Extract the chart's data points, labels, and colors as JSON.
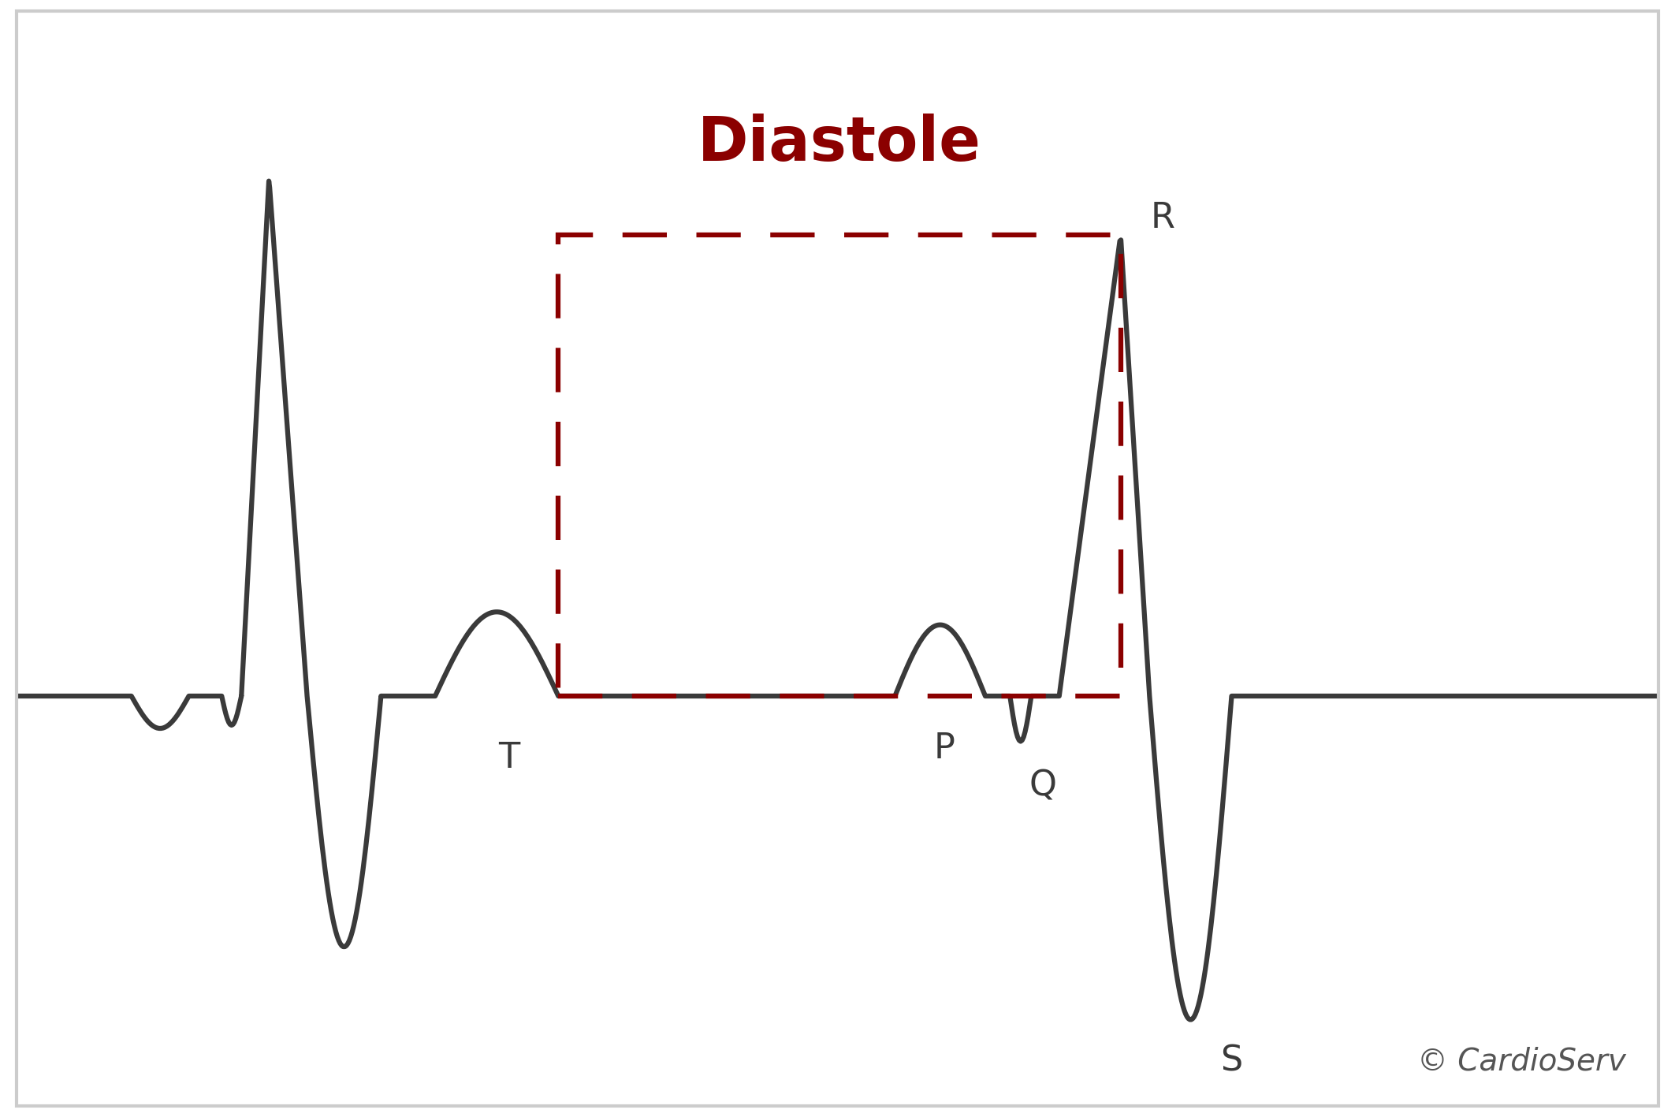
{
  "title": "Diastole",
  "title_color": "#8B0000",
  "ecg_color": "#3a3a3a",
  "dashed_rect_color": "#8B0000",
  "background_color": "#ffffff",
  "border_color": "#cccccc",
  "copyright_text": "© CardioServ",
  "copyright_color": "#555555",
  "figsize": [
    21.25,
    14.17
  ],
  "dpi": 100,
  "xlim": [
    0,
    10
  ],
  "ylim": [
    -2.5,
    4.2
  ],
  "ecg_linewidth": 4.5,
  "label_fontsize": 32,
  "title_fontsize": 56,
  "copyright_fontsize": 28
}
